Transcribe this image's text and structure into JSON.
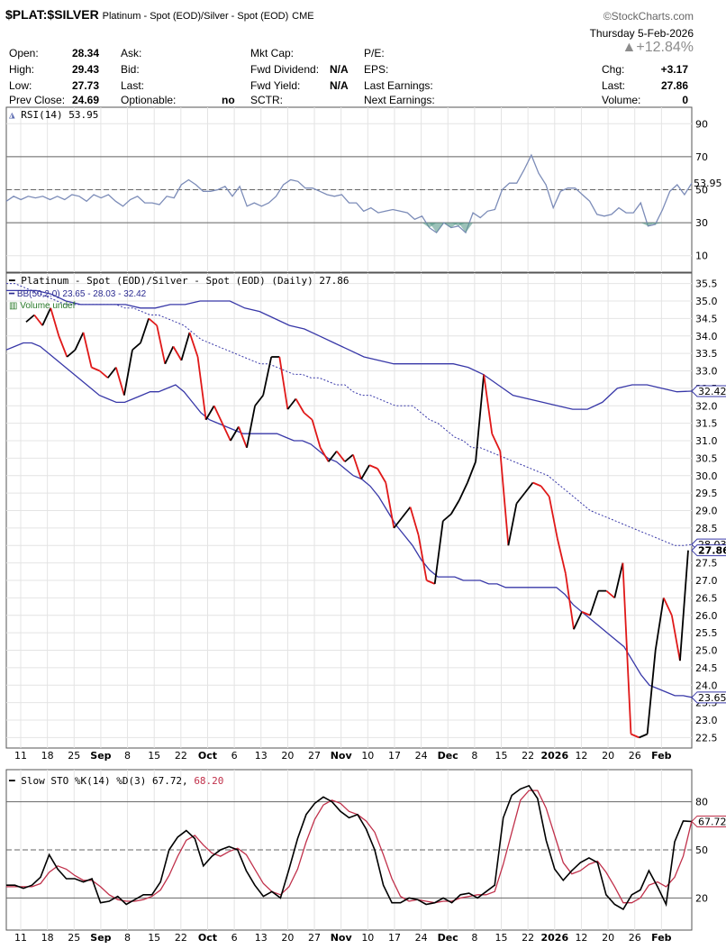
{
  "header": {
    "symbol": "$PLAT:$SILVER",
    "description": "Platinum - Spot (EOD)/Silver - Spot (EOD)",
    "exchange": "CME",
    "brand": "©StockCharts.com",
    "date": "Thursday  5-Feb-2026",
    "pct_change": "▲+12.84%"
  },
  "quote": {
    "open_label": "Open:",
    "open": "28.34",
    "high_label": "High:",
    "high": "29.43",
    "low_label": "Low:",
    "low": "27.73",
    "prev_label": "Prev Close:",
    "prev": "24.69",
    "ask_label": "Ask:",
    "bid_label": "Bid:",
    "last_label2": "Last:",
    "optionable_label": "Optionable:",
    "optionable": "no",
    "mktcap_label": "Mkt Cap:",
    "fwddiv_label": "Fwd Dividend:",
    "fwddiv": "N/A",
    "fwdyield_label": "Fwd Yield:",
    "fwdyield": "N/A",
    "sctr_label": "SCTR:",
    "pe_label": "P/E:",
    "eps_label": "EPS:",
    "lastearn_label": "Last Earnings:",
    "nextearn_label": "Next Earnings:",
    "chg_label": "Chg:",
    "chg": "+3.17",
    "last_label": "Last:",
    "last": "27.86",
    "vol_label": "Volume:",
    "vol": "0"
  },
  "chart_data": [
    {
      "type": "line",
      "panel": "rsi",
      "legend": "RSI(14) 53.95",
      "ylim": [
        0,
        100
      ],
      "yticks": [
        10,
        30,
        50,
        70,
        90
      ],
      "reference_lines": [
        30,
        50,
        70
      ],
      "last_value": "53.95",
      "values": [
        43,
        46,
        44,
        46,
        45,
        46,
        44,
        46,
        44,
        47,
        46,
        43,
        47,
        45,
        47,
        43,
        40,
        44,
        46,
        42,
        42,
        41,
        46,
        45,
        53,
        56,
        53,
        49,
        49,
        50,
        52,
        46,
        52,
        40,
        42,
        40,
        42,
        46,
        53,
        56,
        55,
        51,
        51,
        49,
        47,
        46,
        47,
        42,
        42,
        37,
        39,
        36,
        37,
        38,
        37,
        36,
        32,
        34,
        27,
        24,
        30,
        27,
        28,
        24,
        36,
        33,
        37,
        38,
        50,
        54,
        54,
        62,
        71,
        60,
        53,
        39,
        49,
        51,
        51,
        47,
        43,
        35,
        34,
        35,
        39,
        36,
        36,
        42,
        28,
        29,
        38,
        49,
        53,
        47,
        54
      ]
    },
    {
      "type": "line",
      "panel": "price",
      "legend_main": "Platinum - Spot (EOD)/Silver - Spot (EOD) (Daily) 27.86",
      "legend_bb": "BB(50,2.0) 23.65 - 28.03 - 32.42",
      "legend_vol": "Volume undef",
      "ylim": [
        22.2,
        35.8
      ],
      "yticks": [
        22.5,
        23.0,
        23.5,
        24.0,
        24.5,
        25.0,
        25.5,
        26.0,
        26.5,
        27.0,
        27.5,
        28.0,
        28.5,
        29.0,
        29.5,
        30.0,
        30.5,
        31.0,
        31.5,
        32.0,
        32.5,
        33.0,
        33.5,
        34.0,
        34.5,
        35.0,
        35.5
      ],
      "labels": {
        "upper": "32.42",
        "middle": "28.03",
        "last": "27.86",
        "lower": "23.65"
      },
      "close": [
        34.4,
        34.6,
        34.3,
        34.8,
        34.0,
        33.4,
        33.6,
        34.1,
        33.1,
        33.0,
        32.8,
        33.1,
        32.3,
        33.6,
        33.8,
        34.5,
        34.3,
        33.2,
        33.7,
        33.3,
        34.1,
        33.4,
        31.6,
        32.0,
        31.5,
        31.0,
        31.4,
        30.8,
        32.0,
        32.3,
        33.4,
        33.4,
        31.9,
        32.2,
        31.8,
        31.6,
        30.8,
        30.4,
        30.7,
        30.4,
        30.6,
        29.9,
        30.3,
        30.2,
        29.8,
        28.5,
        28.8,
        29.1,
        28.3,
        27.0,
        26.9,
        28.7,
        28.9,
        29.3,
        29.8,
        30.4,
        32.9,
        31.2,
        30.7,
        28.0,
        29.2,
        29.5,
        29.8,
        29.7,
        29.4,
        28.2,
        27.2,
        25.6,
        26.1,
        26.0,
        26.7,
        26.7,
        26.5,
        27.5,
        22.6,
        22.5,
        22.6,
        25.0,
        26.5,
        26.0,
        24.7,
        27.86
      ],
      "bb_mid": [
        33.6,
        33.7,
        33.8,
        33.8,
        33.7,
        33.5,
        33.3,
        33.1,
        32.9,
        32.7,
        32.5,
        32.3,
        32.2,
        32.1,
        32.1,
        32.2,
        32.3,
        32.4,
        32.4,
        32.5,
        32.6,
        32.4,
        32.1,
        31.8,
        31.6,
        31.5,
        31.4,
        31.3,
        31.2,
        31.2,
        31.2,
        31.2,
        31.2,
        31.1,
        31.0,
        31.0,
        30.9,
        30.7,
        30.5,
        30.4,
        30.2,
        30.0,
        29.9,
        29.7,
        29.4,
        29.0,
        28.6,
        28.3,
        28.0,
        27.6,
        27.3,
        27.1,
        27.1,
        27.1,
        27.0,
        27.0,
        27.0,
        26.9,
        26.9,
        26.8,
        26.8,
        26.8,
        26.8,
        26.8,
        26.8,
        26.8,
        26.6,
        26.3,
        26.1,
        25.9,
        25.7,
        25.5,
        25.3,
        25.1,
        24.7,
        24.3,
        24.0,
        23.9,
        23.8,
        23.7,
        23.7,
        23.65
      ],
      "bb_upper": [
        35.5,
        35.5,
        35.4,
        35.3,
        35.2,
        35.1,
        35.0,
        34.9,
        34.9,
        34.9,
        34.9,
        34.9,
        34.9,
        34.9,
        34.8,
        34.8,
        34.7,
        34.6,
        34.6,
        34.5,
        34.4,
        34.3,
        34.1,
        33.9,
        33.8,
        33.7,
        33.6,
        33.5,
        33.4,
        33.3,
        33.2,
        33.2,
        33.1,
        33.0,
        32.9,
        32.9,
        32.8,
        32.8,
        32.7,
        32.6,
        32.6,
        32.4,
        32.3,
        32.3,
        32.2,
        32.1,
        32.0,
        32.0,
        32.0,
        31.8,
        31.6,
        31.5,
        31.3,
        31.1,
        31.0,
        30.8,
        30.8,
        30.7,
        30.6,
        30.5,
        30.4,
        30.3,
        30.2,
        30.1,
        30.0,
        29.8,
        29.6,
        29.4,
        29.2,
        29.0,
        28.9,
        28.8,
        28.7,
        28.6,
        28.5,
        28.4,
        28.3,
        28.2,
        28.1,
        28.0,
        28.0,
        28.03
      ],
      "bb_upper_solid": [
        35.3,
        35.3,
        35.3,
        35.2,
        35.0,
        34.9,
        34.9,
        34.9,
        34.9,
        34.8,
        34.8,
        34.9,
        34.9,
        35.0,
        35.0,
        35.0,
        34.8,
        34.7,
        34.5,
        34.3,
        34.2,
        34.0,
        33.8,
        33.6,
        33.4,
        33.3,
        33.2,
        33.2,
        33.2,
        33.2,
        33.2,
        33.1,
        32.9,
        32.6,
        32.3,
        32.2,
        32.1,
        32.0,
        31.9,
        31.9,
        32.1,
        32.5,
        32.6,
        32.6,
        32.5,
        32.4,
        32.42
      ]
    },
    {
      "type": "line",
      "panel": "stochastic",
      "legend_k": "Slow STO %K(14) %D(3) 67.72,",
      "legend_d": "68.20",
      "ylim": [
        0,
        100
      ],
      "yticks": [
        20,
        50,
        80
      ],
      "reference_lines": [
        20,
        50,
        80
      ],
      "last_value": "67.72",
      "k": [
        28,
        28,
        26,
        28,
        33,
        47,
        38,
        32,
        32,
        30,
        32,
        17,
        18,
        21,
        16,
        19,
        22,
        22,
        30,
        50,
        58,
        62,
        57,
        40,
        46,
        50,
        52,
        50,
        37,
        28,
        21,
        24,
        20,
        38,
        57,
        72,
        79,
        83,
        80,
        74,
        70,
        72,
        63,
        50,
        28,
        17,
        17,
        20,
        19,
        16,
        17,
        20,
        17,
        22,
        23,
        20,
        24,
        28,
        70,
        84,
        88,
        90,
        82,
        56,
        38,
        31,
        37,
        42,
        45,
        42,
        22,
        16,
        13,
        22,
        25,
        37,
        27,
        16,
        55,
        68,
        67.72
      ],
      "d": [
        27,
        27,
        27,
        27,
        29,
        36,
        40,
        38,
        34,
        31,
        31,
        27,
        22,
        19,
        18,
        18,
        19,
        21,
        25,
        34,
        46,
        56,
        59,
        53,
        48,
        46,
        49,
        51,
        47,
        38,
        29,
        24,
        22,
        27,
        38,
        55,
        69,
        78,
        81,
        79,
        74,
        72,
        68,
        61,
        47,
        32,
        21,
        18,
        19,
        18,
        17,
        18,
        18,
        20,
        21,
        22,
        22,
        24,
        41,
        61,
        81,
        87,
        87,
        76,
        59,
        42,
        35,
        37,
        41,
        43,
        36,
        27,
        17,
        17,
        20,
        28,
        30,
        27,
        33,
        46,
        68.2
      ]
    }
  ],
  "x_axis": {
    "labels": [
      "11",
      "18",
      "25",
      "Sep",
      "8",
      "15",
      "22",
      "Oct",
      "6",
      "13",
      "20",
      "27",
      "Nov",
      "10",
      "17",
      "24",
      "Dec",
      "8",
      "15",
      "22",
      "2026",
      "12",
      "20",
      "26",
      "Feb"
    ],
    "bold": [
      "Sep",
      "Oct",
      "Nov",
      "Dec",
      "2026",
      "Feb"
    ]
  }
}
